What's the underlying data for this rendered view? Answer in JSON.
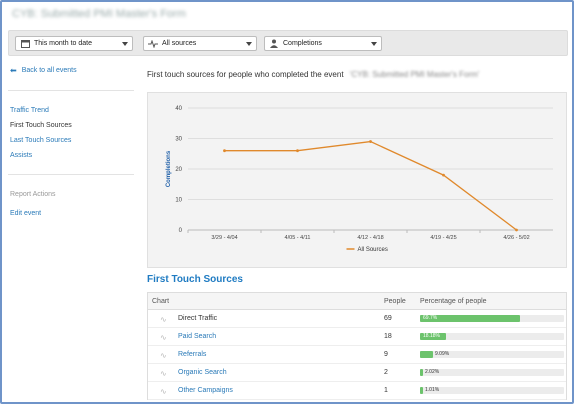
{
  "title": "CYB: Submitted PMI Master's Form",
  "toolbar": {
    "date_range": "This month to date",
    "sources": "All sources",
    "metric": "Completions"
  },
  "sidebar": {
    "back": "Back to all events",
    "nav": [
      "Traffic Trend",
      "First Touch Sources",
      "Last Touch Sources",
      "Assists"
    ],
    "active_index": 1,
    "report_actions_label": "Report Actions",
    "edit_event": "Edit event"
  },
  "heading": {
    "text": "First touch sources for people who completed the event",
    "event_name": "'CYB: Submitted PMI Master's Form'"
  },
  "colors": {
    "line": "#e0892c",
    "bar": "#6cc36c",
    "link": "#2a7ab8",
    "section_title": "#1f7bc2"
  },
  "chart_data": {
    "type": "line",
    "ylabel": "Completions",
    "ylim": [
      0,
      40
    ],
    "yticks": [
      0,
      10,
      20,
      30,
      40
    ],
    "categories": [
      "3/29 - 4/04",
      "4/05 - 4/11",
      "4/12 - 4/18",
      "4/19 - 4/25",
      "4/26 - 5/02"
    ],
    "series": [
      {
        "name": "All Sources",
        "values": [
          26,
          26,
          29,
          18,
          0
        ]
      }
    ],
    "grid": true,
    "legend": "bottom-center"
  },
  "table": {
    "section_title": "First Touch Sources",
    "headers": {
      "chart": "Chart",
      "people": "People",
      "percentage": "Percentage of people"
    },
    "rows": [
      {
        "name": "Direct Traffic",
        "people": "69",
        "pct_label": "69.7%",
        "pct": 69.7,
        "link": false
      },
      {
        "name": "Paid Search",
        "people": "18",
        "pct_label": "18.18%",
        "pct": 18.18,
        "link": true
      },
      {
        "name": "Referrals",
        "people": "9",
        "pct_label": "9.09%",
        "pct": 9.09,
        "link": true
      },
      {
        "name": "Organic Search",
        "people": "2",
        "pct_label": "2.02%",
        "pct": 2.02,
        "link": true
      },
      {
        "name": "Other Campaigns",
        "people": "1",
        "pct_label": "1.01%",
        "pct": 1.01,
        "link": true
      }
    ]
  }
}
